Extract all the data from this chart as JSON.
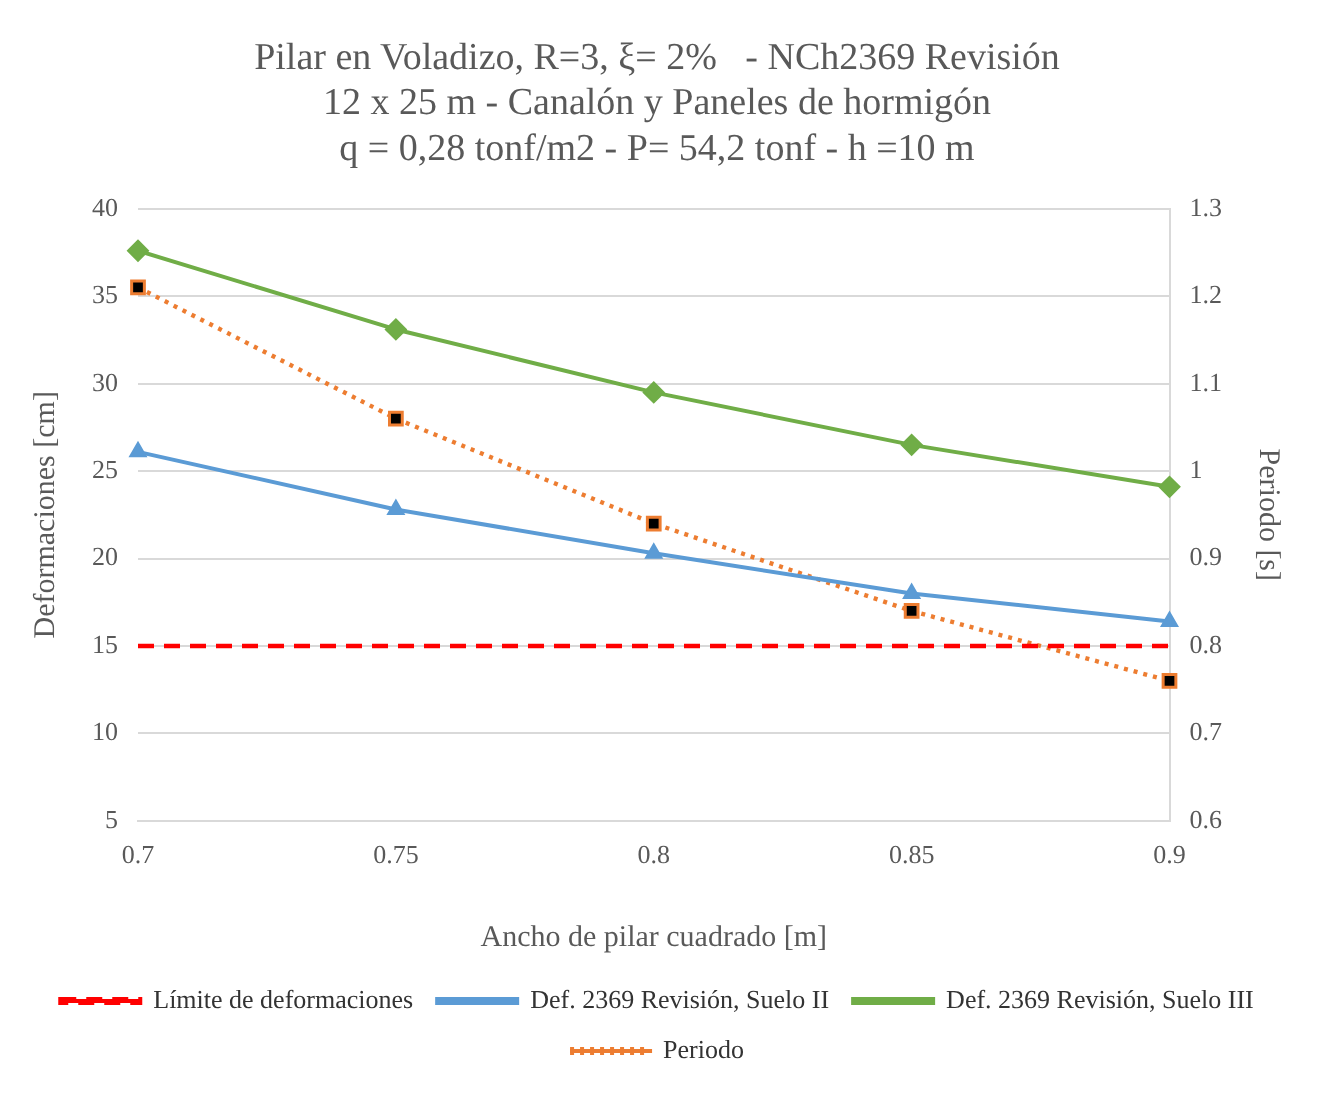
{
  "chart_data": {
    "type": "line",
    "title": "Pilar en Voladizo, R=3, ξ= 2%   - NCh2369 Revisión\n12 x 25 m - Canalón y Paneles de hormigón\nq = 0,28 tonf/m2 - P= 54,2 tonf - h =10 m",
    "xlabel": "Ancho de pilar cuadrado [m]",
    "ylabel": "Deformaciones [cm]",
    "y2label": "Periodo [s]",
    "categories": [
      "0.7",
      "0.75",
      "0.8",
      "0.85",
      "0.9"
    ],
    "series": [
      {
        "name": "Límite de deformaciones",
        "color": "#ff0000",
        "values": [
          15,
          15,
          15,
          15,
          15
        ],
        "marker": "none",
        "line_style": "dashed"
      },
      {
        "name": "Def. 2369 Revisión, Suelo II",
        "color": "#5b9bd5",
        "values": [
          26.1,
          22.8,
          20.3,
          18.0,
          16.4
        ],
        "marker": "triangle",
        "line_style": "solid"
      },
      {
        "name": "Def. 2369 Revisión, Suelo III",
        "color": "#70ad47",
        "values": [
          37.6,
          33.1,
          29.5,
          26.5,
          24.1
        ],
        "marker": "diamond",
        "line_style": "solid"
      },
      {
        "name": "Periodo",
        "color": "#ed7d31",
        "values": [
          1.21,
          1.06,
          0.94,
          0.84,
          0.76
        ],
        "axis": "y2",
        "marker": "square",
        "line_style": "dotted"
      }
    ],
    "ylim": [
      5,
      40
    ],
    "yticks": [
      5,
      10,
      15,
      20,
      25,
      30,
      35,
      40
    ],
    "y2lim": [
      0.6,
      1.3
    ],
    "y2ticks": [
      0.6,
      0.7,
      0.8,
      0.9,
      1,
      1.1,
      1.2,
      1.3
    ],
    "grid": "y",
    "legend": "bottom"
  }
}
